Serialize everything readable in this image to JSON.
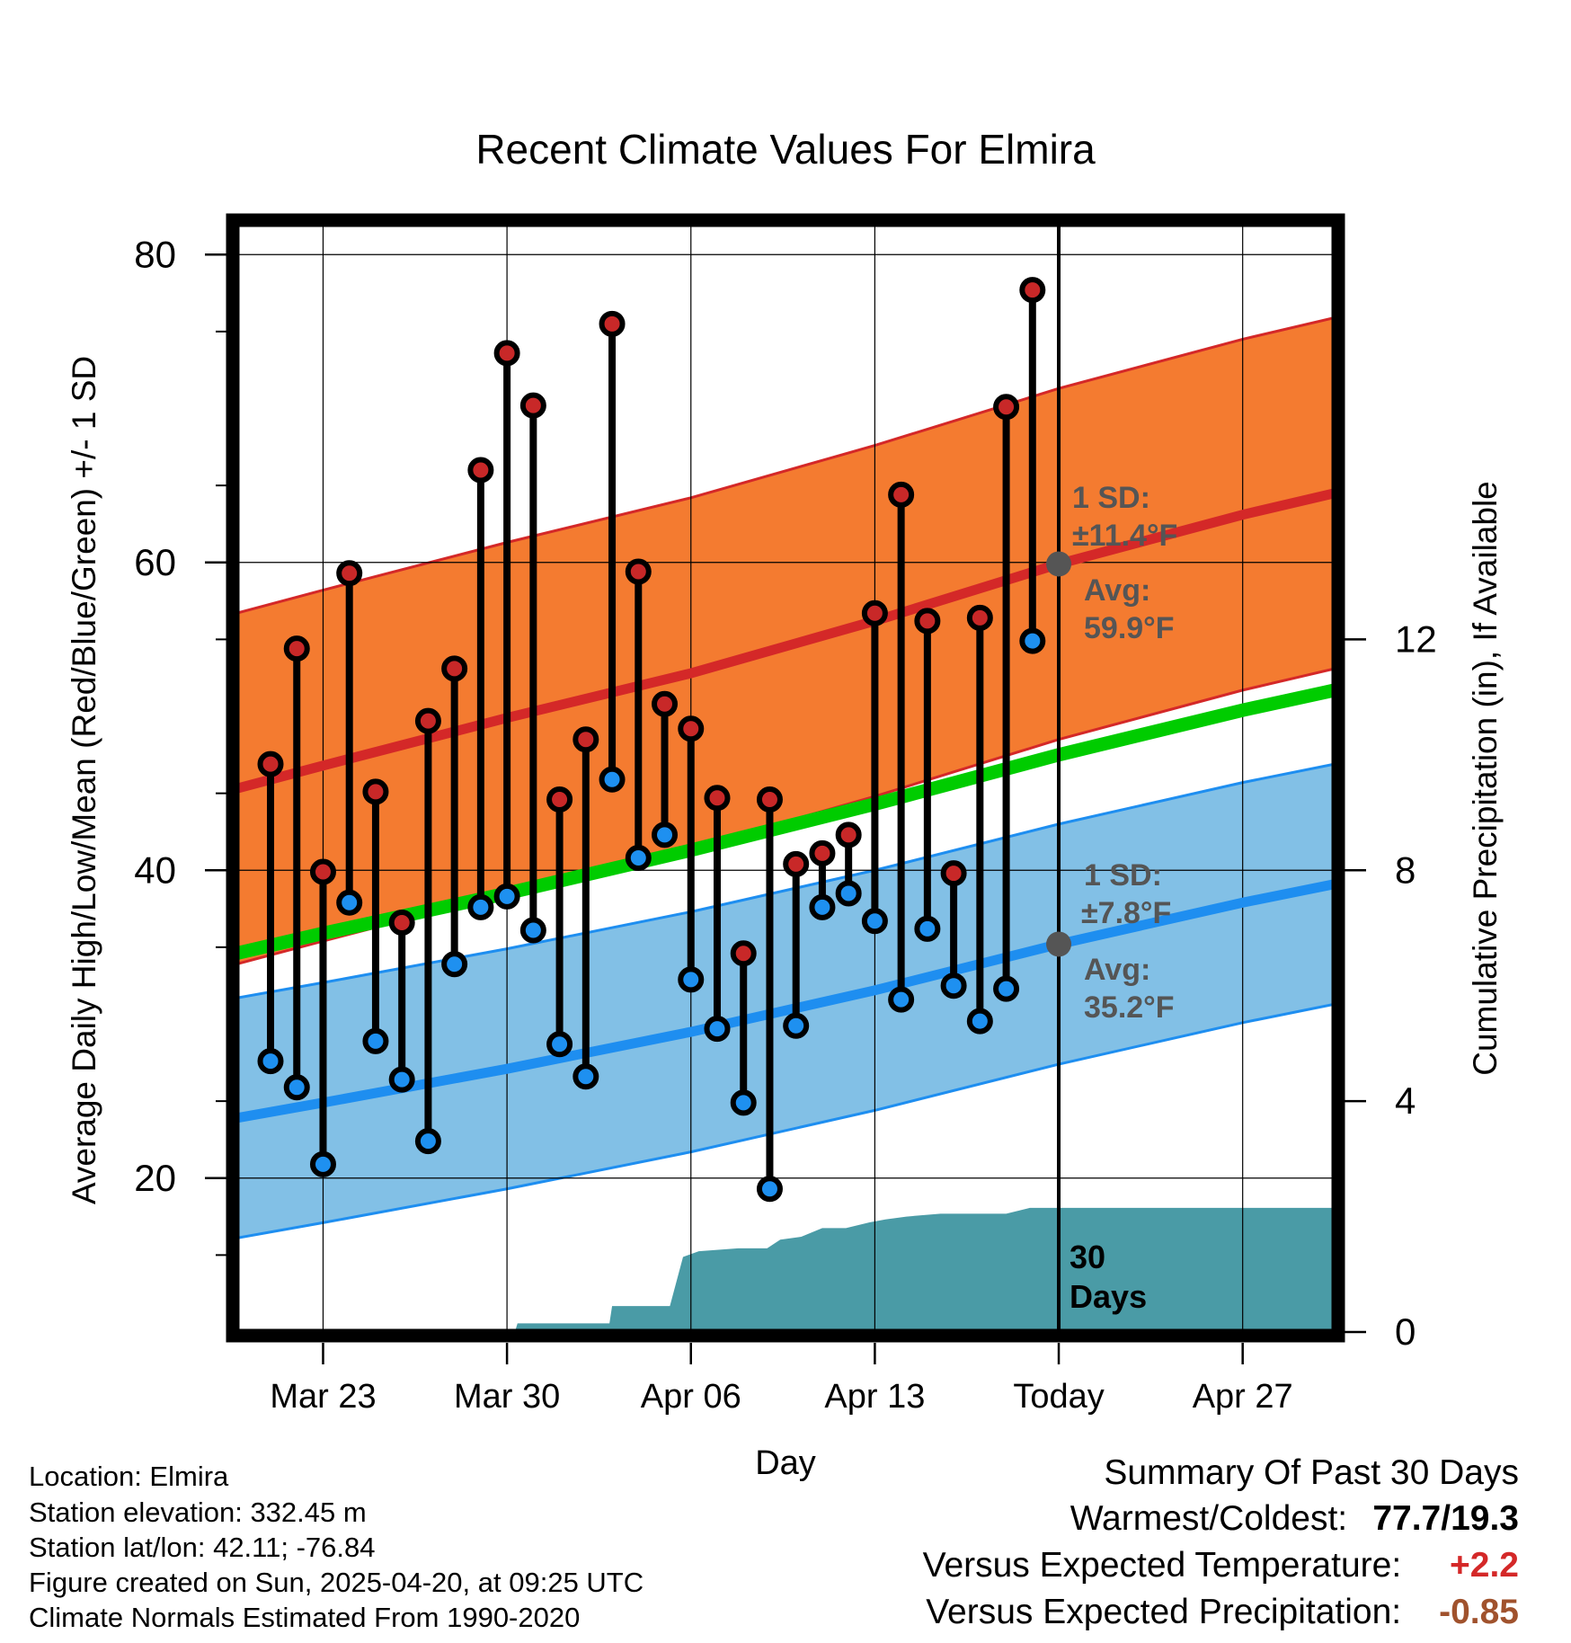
{
  "chart_data": {
    "type": "line",
    "title": "Recent Climate Values For Elmira",
    "xlabel": "Day",
    "ylabel": "Average Daily High/Low/Mean (Red/Blue/Green) +/- 1 SD",
    "y2label": "Cumulative Precipitation (in), If Available",
    "ylim": [
      10,
      82
    ],
    "y2lim": [
      0,
      19.2
    ],
    "yticks": [
      20,
      40,
      60,
      80
    ],
    "y2ticks": [
      0,
      4,
      8,
      12
    ],
    "xlim": [
      19.7,
      61.5
    ],
    "xticks": [
      {
        "day": 23,
        "label": "Mar 23"
      },
      {
        "day": 30,
        "label": "Mar 30"
      },
      {
        "day": 37,
        "label": "Apr 06"
      },
      {
        "day": 44,
        "label": "Apr 13"
      },
      {
        "day": 51,
        "label": "Today"
      },
      {
        "day": 58,
        "label": "Apr 27"
      }
    ],
    "grid": true,
    "today_day": 51,
    "today_label": "30 Days",
    "daily": [
      {
        "day": 21,
        "high": 46.9,
        "low": 27.6
      },
      {
        "day": 22,
        "high": 54.4,
        "low": 25.9
      },
      {
        "day": 23,
        "high": 39.9,
        "low": 20.9
      },
      {
        "day": 24,
        "high": 59.3,
        "low": 37.9
      },
      {
        "day": 25,
        "high": 45.1,
        "low": 28.9
      },
      {
        "day": 26,
        "high": 36.6,
        "low": 26.4
      },
      {
        "day": 27,
        "high": 49.7,
        "low": 22.4
      },
      {
        "day": 28,
        "high": 53.1,
        "low": 33.9
      },
      {
        "day": 29,
        "high": 66.0,
        "low": 37.6
      },
      {
        "day": 30,
        "high": 73.6,
        "low": 38.3
      },
      {
        "day": 31,
        "high": 70.2,
        "low": 36.1
      },
      {
        "day": 32,
        "high": 44.6,
        "low": 28.7
      },
      {
        "day": 33,
        "high": 48.5,
        "low": 26.6
      },
      {
        "day": 34,
        "high": 75.5,
        "low": 45.9
      },
      {
        "day": 35,
        "high": 59.4,
        "low": 40.8
      },
      {
        "day": 36,
        "high": 50.8,
        "low": 42.3
      },
      {
        "day": 37,
        "high": 49.2,
        "low": 32.9
      },
      {
        "day": 38,
        "high": 44.7,
        "low": 29.7
      },
      {
        "day": 39,
        "high": 34.6,
        "low": 24.9
      },
      {
        "day": 40,
        "high": 44.6,
        "low": 19.3
      },
      {
        "day": 41,
        "high": 40.4,
        "low": 29.9
      },
      {
        "day": 42,
        "high": 41.1,
        "low": 37.6
      },
      {
        "day": 43,
        "high": 42.3,
        "low": 38.5
      },
      {
        "day": 44,
        "high": 56.7,
        "low": 36.7
      },
      {
        "day": 45,
        "high": 64.4,
        "low": 31.6
      },
      {
        "day": 46,
        "high": 56.2,
        "low": 36.2
      },
      {
        "day": 47,
        "high": 39.8,
        "low": 32.5
      },
      {
        "day": 48,
        "high": 56.4,
        "low": 30.2
      },
      {
        "day": 49,
        "high": 70.1,
        "low": 32.3
      },
      {
        "day": 50,
        "high": 77.7,
        "low": 54.9
      }
    ],
    "normals": {
      "days": [
        19.7,
        23,
        30,
        37,
        44,
        51,
        58,
        61.5
      ],
      "high_mean": [
        45.3,
        46.8,
        49.9,
        52.8,
        56.2,
        59.9,
        63.1,
        64.5
      ],
      "low_mean": [
        23.9,
        24.9,
        27.1,
        29.5,
        32.2,
        35.2,
        37.9,
        39.1
      ],
      "avg_mean": [
        34.6,
        35.9,
        38.5,
        41.3,
        44.3,
        47.5,
        50.4,
        51.7
      ],
      "high_sd": 11.4,
      "low_sd": 7.8
    },
    "precip_cumulative": {
      "days": [
        19.7,
        30.3,
        30.4,
        31.9,
        32.0,
        33.9,
        34.0,
        35.4,
        36.2,
        36.7,
        37.3,
        38.8,
        39.9,
        40.4,
        41.2,
        42.0,
        42.9,
        43.8,
        44.4,
        45.2,
        46.5,
        49.0,
        49.9,
        51.0,
        61.5
      ],
      "values": [
        0,
        0,
        0.15,
        0.15,
        0.15,
        0.15,
        0.45,
        0.45,
        0.45,
        1.3,
        1.4,
        1.45,
        1.45,
        1.6,
        1.65,
        1.8,
        1.8,
        1.9,
        1.95,
        2.0,
        2.05,
        2.05,
        2.15,
        2.15,
        2.15
      ]
    },
    "annotations": {
      "high_sd_label": "1 SD:",
      "high_sd_value": "±11.4°F",
      "high_avg_label": "Avg:",
      "high_avg_value": "59.9°F",
      "low_sd_label": "1 SD:",
      "low_sd_value": "±7.8°F",
      "low_avg_label": "Avg:",
      "low_avg_value": "35.2°F"
    },
    "colors": {
      "high_band": "#f47b30",
      "high_line": "#d42828",
      "low_band": "#82c0e6",
      "low_line": "#1e8ef0",
      "mean_line": "#00cc00",
      "precip": "#4a9ba6",
      "high_dot": "#c82828",
      "low_dot": "#1e90f0",
      "today_dot": "#555555"
    }
  },
  "footer": {
    "location": "Location: Elmira",
    "elevation": "Station elevation: 332.45 m",
    "latlon": "Station lat/lon: 42.11; -76.84",
    "created": "Figure created on Sun, 2025-04-20, at 09:25 UTC",
    "normals": "Climate Normals Estimated From 1990-2020"
  },
  "summary": {
    "title": "Summary Of Past 30 Days",
    "warm_cold_label": "Warmest/Coldest:",
    "warm_cold_value": "77.7/19.3",
    "temp_label": "Versus Expected Temperature:",
    "temp_value": "+2.2",
    "temp_color": "#d42828",
    "precip_label": "Versus Expected Precipitation:",
    "precip_value": "-0.85",
    "precip_color": "#a0522d"
  }
}
